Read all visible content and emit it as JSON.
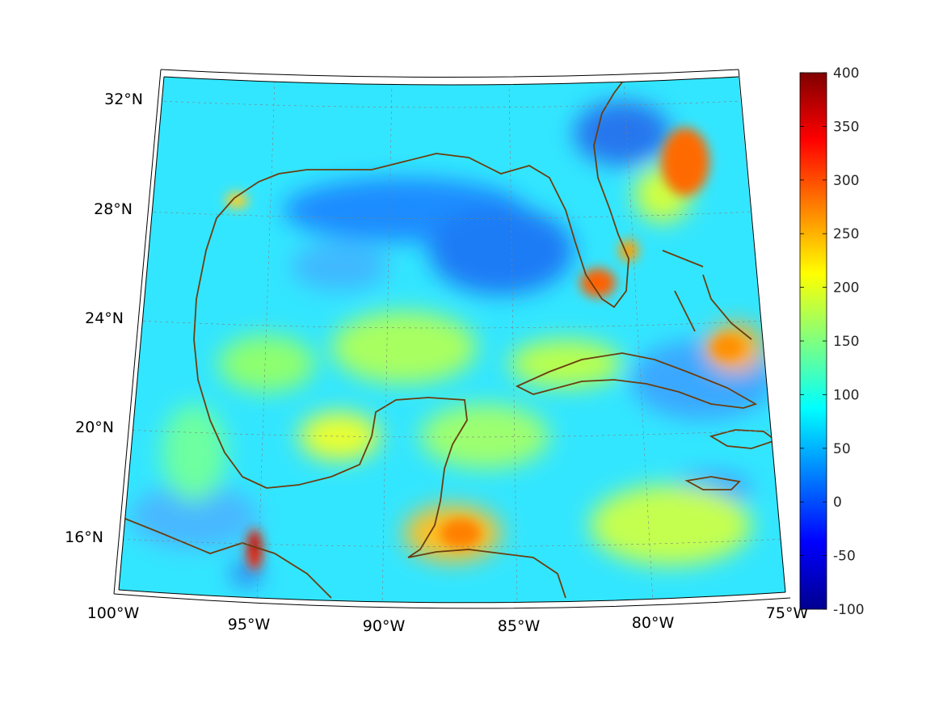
{
  "map": {
    "latitude_labels": [
      "32°N",
      "28°N",
      "24°N",
      "20°N",
      "16°N"
    ],
    "longitude_labels": [
      "100°W",
      "95°W",
      "90°W",
      "85°W",
      "80°W",
      "75°W"
    ],
    "colors": {
      "coastline": "#6b3d0f",
      "background_field": "#2ee8ff",
      "grid": "#7f7f7f"
    }
  },
  "colorbar": {
    "ticks": [
      "400",
      "350",
      "300",
      "250",
      "200",
      "150",
      "100",
      "50",
      "0",
      "-50",
      "-100"
    ],
    "range": [
      -100,
      400
    ],
    "colormap": "jet"
  }
}
